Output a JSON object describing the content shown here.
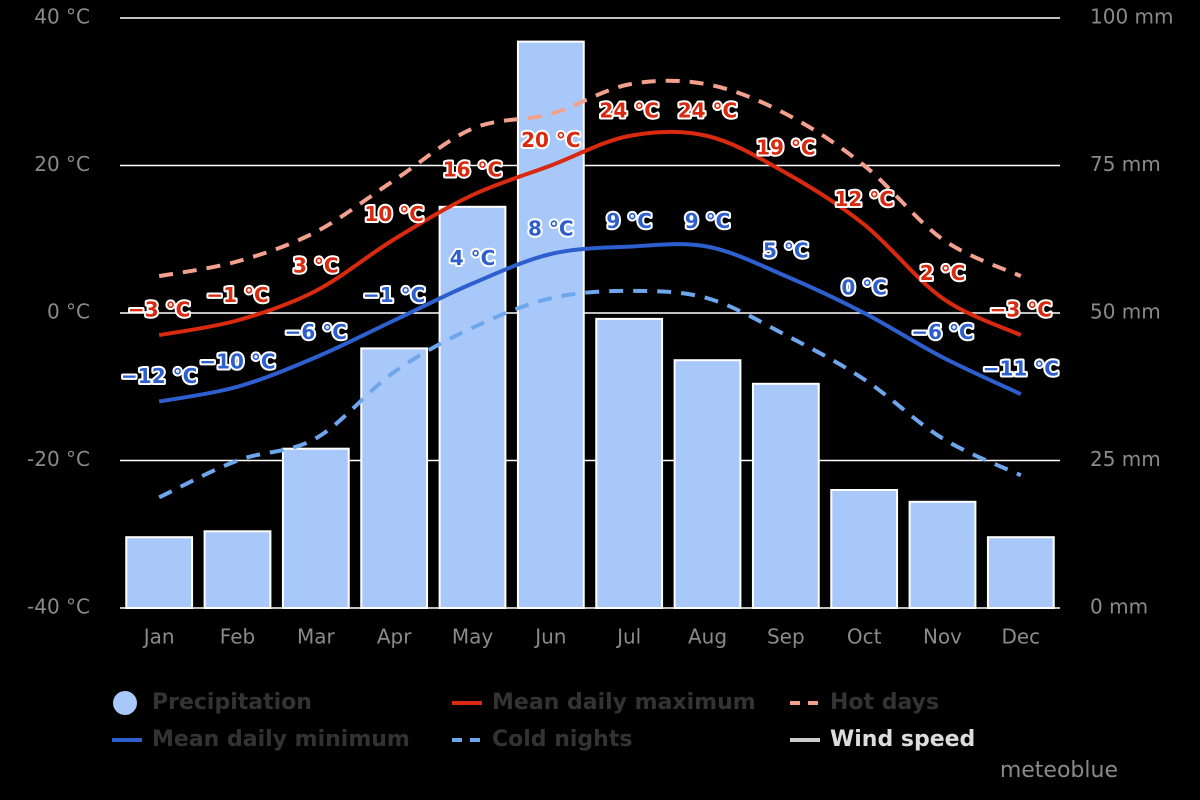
{
  "chart_data": {
    "type": "combo",
    "credit": "meteoblue",
    "categories": [
      "Jan",
      "Feb",
      "Mar",
      "Apr",
      "May",
      "Jun",
      "Jul",
      "Aug",
      "Sep",
      "Oct",
      "Nov",
      "Dec"
    ],
    "ylim": [
      -40,
      40
    ],
    "yticks": [
      {
        "value": -40,
        "label": "-40 °C"
      },
      {
        "value": -20,
        "label": "-20 °C"
      },
      {
        "value": 0,
        "label": "0 °C"
      },
      {
        "value": 20,
        "label": "20 °C"
      },
      {
        "value": 40,
        "label": "40 °C"
      }
    ],
    "y2lim": [
      0,
      100
    ],
    "y2ticks": [
      {
        "value": 0,
        "label": "0 mm"
      },
      {
        "value": 25,
        "label": "25 mm"
      },
      {
        "value": 50,
        "label": "50 mm"
      },
      {
        "value": 75,
        "label": "75 mm"
      },
      {
        "value": 100,
        "label": "100 mm"
      }
    ],
    "grid": true,
    "series": [
      {
        "name": "Precipitation",
        "kind": "bar",
        "axis": "y2",
        "color": "#a9c8fa",
        "values": [
          12,
          13,
          27,
          44,
          68,
          96,
          49,
          42,
          38,
          20,
          18,
          12
        ]
      },
      {
        "name": "Mean daily maximum",
        "kind": "line",
        "color": "#d9290f",
        "dashed": false,
        "values": [
          -3,
          -1,
          3,
          10,
          16,
          20,
          24,
          24,
          19,
          12,
          2,
          -3
        ],
        "value_labels": [
          "−3 °C",
          "−1 °C",
          "3 °C",
          "10 °C",
          "16 °C",
          "20 °C",
          "24 °C",
          "24 °C",
          "19 °C",
          "12 °C",
          "2 °C",
          "−3 °C"
        ]
      },
      {
        "name": "Hot days",
        "kind": "line",
        "color": "#f4a08e",
        "dashed": true,
        "values": [
          5,
          7,
          11,
          18,
          25,
          27,
          31,
          31,
          27,
          20,
          10,
          5
        ]
      },
      {
        "name": "Mean daily minimum",
        "kind": "line",
        "color": "#2e5fcf",
        "dashed": false,
        "values": [
          -12,
          -10,
          -6,
          -1,
          4,
          8,
          9,
          9,
          5,
          0,
          -6,
          -11
        ],
        "value_labels": [
          "−12 °C",
          "−10 °C",
          "−6 °C",
          "−1 °C",
          "4 °C",
          "8 °C",
          "9 °C",
          "9 °C",
          "5 °C",
          "0 °C",
          "−6 °C",
          "−11 °C"
        ]
      },
      {
        "name": "Cold nights",
        "kind": "line",
        "color": "#6ea6ec",
        "dashed": true,
        "values": [
          -25,
          -20,
          -17,
          -8,
          -2,
          2,
          3,
          2,
          -3,
          -9,
          -17,
          -22
        ]
      },
      {
        "name": "Wind speed",
        "kind": "line",
        "color": "#cccccc",
        "dashed": false,
        "values": [
          null,
          null,
          null,
          null,
          null,
          null,
          null,
          null,
          null,
          null,
          null,
          null
        ]
      }
    ]
  }
}
